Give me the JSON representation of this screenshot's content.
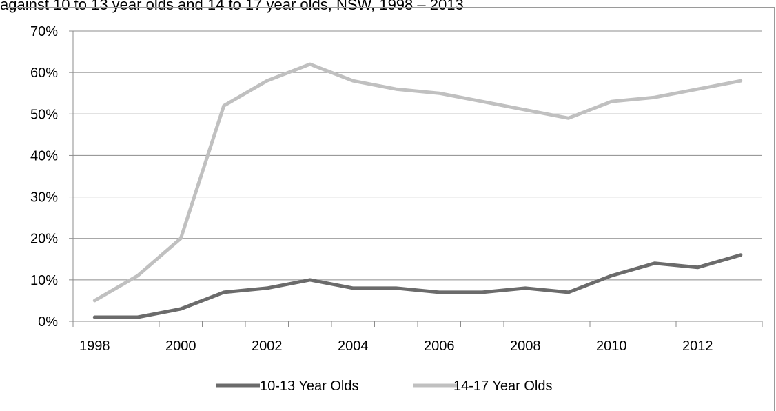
{
  "chart_data": {
    "type": "line",
    "title": "against 10 to 13 year olds and 14 to 17 year olds, NSW, 1998 – 2013",
    "xlabel": "",
    "ylabel": "",
    "x": [
      1998,
      1999,
      2000,
      2001,
      2002,
      2003,
      2004,
      2005,
      2006,
      2007,
      2008,
      2009,
      2010,
      2011,
      2012,
      2013
    ],
    "x_tick_labels": [
      "1998",
      "2000",
      "2002",
      "2004",
      "2006",
      "2008",
      "2010",
      "2012"
    ],
    "y_tick_labels": [
      "0%",
      "10%",
      "20%",
      "30%",
      "40%",
      "50%",
      "60%",
      "70%"
    ],
    "ylim": [
      0,
      70
    ],
    "y_unit": "%",
    "grid": true,
    "legend_position": "bottom",
    "series": [
      {
        "name": "10-13 Year Olds",
        "color": "#6b6b6b",
        "values": [
          1,
          1,
          3,
          7,
          8,
          10,
          8,
          8,
          7,
          7,
          8,
          7,
          11,
          14,
          13,
          16
        ]
      },
      {
        "name": "14-17 Year Olds",
        "color": "#c0c0c0",
        "values": [
          5,
          11,
          20,
          52,
          58,
          62,
          58,
          56,
          55,
          53,
          51,
          49,
          53,
          54,
          56,
          58
        ]
      }
    ]
  }
}
